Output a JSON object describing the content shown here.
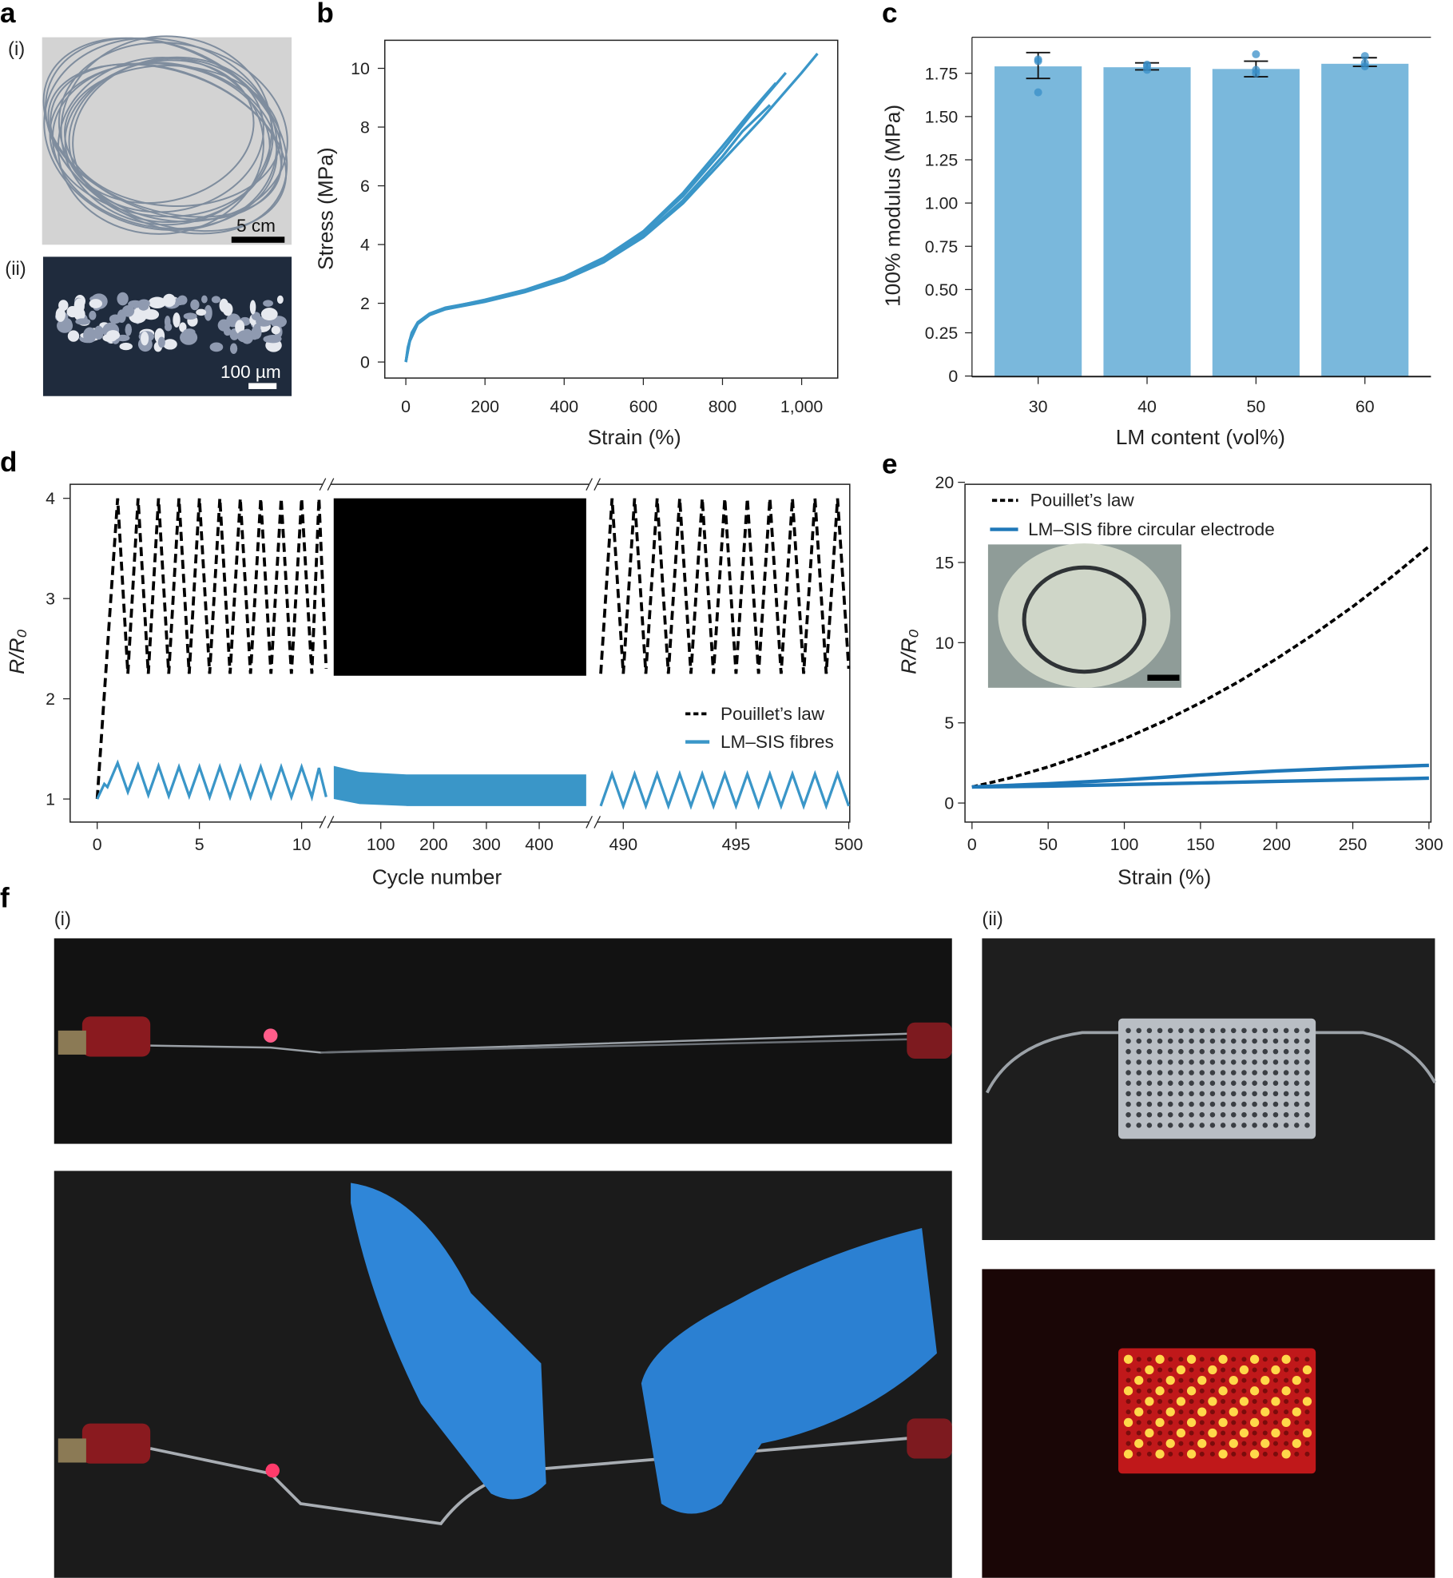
{
  "panel_labels": {
    "a": "a",
    "b": "b",
    "c": "c",
    "d": "d",
    "e": "e",
    "f": "f"
  },
  "sub_labels": {
    "a_i": "(i)",
    "a_ii": "(ii)",
    "f_i": "(i)",
    "f_ii": "(ii)"
  },
  "scale_bars": {
    "a_i": "5 cm",
    "a_ii": "100 µm"
  },
  "chart_data": [
    {
      "panel": "b",
      "type": "line",
      "xlabel": "Strain (%)",
      "ylabel": "Stress (MPa)",
      "xlim": [
        -53,
        1090
      ],
      "ylim": [
        -0.55,
        10.96
      ],
      "xticks": [
        0,
        200,
        400,
        600,
        800,
        1000
      ],
      "xtick_labels": [
        "0",
        "200",
        "400",
        "600",
        "800",
        "1,000"
      ],
      "yticks": [
        0,
        2,
        4,
        6,
        8,
        10
      ],
      "ytick_labels": [
        "0",
        "2",
        "4",
        "6",
        "8",
        "10"
      ],
      "grid": false,
      "color": "#3a96c8",
      "series": [
        {
          "points": [
            [
              0,
              0
            ],
            [
              5,
              0.5
            ],
            [
              15,
              1.0
            ],
            [
              30,
              1.35
            ],
            [
              60,
              1.65
            ],
            [
              100,
              1.85
            ],
            [
              200,
              2.1
            ],
            [
              300,
              2.42
            ],
            [
              400,
              2.85
            ],
            [
              500,
              3.5
            ],
            [
              600,
              4.4
            ],
            [
              700,
              5.65
            ],
            [
              800,
              7.2
            ],
            [
              900,
              8.9
            ],
            [
              960,
              9.85
            ]
          ]
        },
        {
          "points": [
            [
              0,
              0
            ],
            [
              5,
              0.45
            ],
            [
              15,
              0.95
            ],
            [
              30,
              1.3
            ],
            [
              60,
              1.6
            ],
            [
              100,
              1.8
            ],
            [
              200,
              2.05
            ],
            [
              300,
              2.38
            ],
            [
              400,
              2.8
            ],
            [
              500,
              3.4
            ],
            [
              600,
              4.25
            ],
            [
              700,
              5.4
            ],
            [
              800,
              6.85
            ],
            [
              900,
              8.3
            ],
            [
              1000,
              9.85
            ],
            [
              1040,
              10.5
            ]
          ]
        },
        {
          "points": [
            [
              0,
              0
            ],
            [
              10,
              0.7
            ],
            [
              30,
              1.3
            ],
            [
              60,
              1.6
            ],
            [
              100,
              1.8
            ],
            [
              200,
              2.08
            ],
            [
              300,
              2.4
            ],
            [
              400,
              2.82
            ],
            [
              500,
              3.45
            ],
            [
              600,
              4.3
            ],
            [
              700,
              5.5
            ],
            [
              800,
              7.0
            ],
            [
              850,
              7.85
            ],
            [
              920,
              8.75
            ]
          ]
        },
        {
          "points": [
            [
              0,
              0
            ],
            [
              10,
              0.75
            ],
            [
              30,
              1.32
            ],
            [
              60,
              1.62
            ],
            [
              100,
              1.83
            ],
            [
              200,
              2.12
            ],
            [
              300,
              2.45
            ],
            [
              400,
              2.9
            ],
            [
              500,
              3.55
            ],
            [
              600,
              4.45
            ],
            [
              700,
              5.75
            ],
            [
              800,
              7.35
            ],
            [
              870,
              8.5
            ],
            [
              935,
              9.5
            ]
          ]
        }
      ]
    },
    {
      "panel": "c",
      "type": "bar",
      "xlabel": "LM content (vol%)",
      "ylabel": "100% modulus (MPa)",
      "categories": [
        "30",
        "40",
        "50",
        "60"
      ],
      "values": [
        1.79,
        1.785,
        1.775,
        1.805
      ],
      "error_range": [
        [
          1.72,
          1.87
        ],
        [
          1.77,
          1.81
        ],
        [
          1.73,
          1.82
        ],
        [
          1.79,
          1.84
        ]
      ],
      "individual_points": [
        [
          1.64,
          1.82,
          1.83
        ],
        [
          1.77,
          1.79,
          1.8
        ],
        [
          1.75,
          1.77,
          1.86
        ],
        [
          1.79,
          1.81,
          1.85
        ]
      ],
      "ylim": [
        0,
        1.97
      ],
      "yticks": [
        0,
        0.25,
        0.5,
        0.75,
        1.0,
        1.25,
        1.5,
        1.75
      ],
      "ytick_labels": [
        "0",
        "0.25",
        "0.50",
        "0.75",
        "1.00",
        "1.25",
        "1.50",
        "1.75"
      ],
      "grid": false,
      "bar_color": "#7ab8dc",
      "point_color": "#3a8fc8"
    },
    {
      "panel": "d",
      "type": "line",
      "xlabel": "Cycle number",
      "ylabel": "R/R₀",
      "broken_x_axis": true,
      "xtick_labels": [
        "0",
        "5",
        "10",
        "100",
        "200",
        "300",
        "400",
        "490",
        "495",
        "500"
      ],
      "xticks": [
        0,
        5,
        10,
        100,
        200,
        300,
        400,
        490,
        495,
        500
      ],
      "yticks": [
        1,
        2,
        3,
        4
      ],
      "ytick_labels": [
        "1",
        "2",
        "3",
        "4"
      ],
      "legend_position": "lower-right",
      "series": [
        {
          "name": "Pouillet’s law",
          "color": "#000000",
          "style": "dashed",
          "segment1": [
            [
              0,
              1
            ],
            [
              1,
              4
            ],
            [
              1.5,
              2.25
            ],
            [
              2,
              4
            ],
            [
              2.5,
              2.25
            ],
            [
              3,
              4
            ],
            [
              3.5,
              2.25
            ],
            [
              4,
              4
            ],
            [
              4.5,
              2.25
            ],
            [
              5,
              4
            ],
            [
              5.5,
              2.25
            ],
            [
              6,
              4
            ],
            [
              6.5,
              2.25
            ],
            [
              7,
              4
            ],
            [
              7.5,
              2.25
            ],
            [
              8,
              4
            ],
            [
              8.5,
              2.25
            ],
            [
              9,
              4
            ],
            [
              9.5,
              2.25
            ],
            [
              10,
              4
            ],
            [
              10.5,
              2.25
            ],
            [
              10.85,
              4
            ],
            [
              11.2,
              2.3
            ]
          ],
          "segment2_band": {
            "x_range": [
              11,
              489
            ],
            "lower": 2.23,
            "upper": 4
          },
          "segment3": [
            [
              489,
              2.25
            ],
            [
              489.5,
              4
            ],
            [
              490,
              2.25
            ],
            [
              490.5,
              4
            ],
            [
              491,
              2.25
            ],
            [
              491.5,
              4
            ],
            [
              492,
              2.25
            ],
            [
              492.5,
              4
            ],
            [
              493,
              2.25
            ],
            [
              493.5,
              4
            ],
            [
              494,
              2.25
            ],
            [
              494.5,
              4
            ],
            [
              495,
              2.25
            ],
            [
              495.5,
              4
            ],
            [
              496,
              2.25
            ],
            [
              496.5,
              4
            ],
            [
              497,
              2.25
            ],
            [
              497.5,
              4
            ],
            [
              498,
              2.25
            ],
            [
              498.5,
              4
            ],
            [
              499,
              2.25
            ],
            [
              499.5,
              4
            ],
            [
              500,
              2.3
            ]
          ]
        },
        {
          "name": "LM–SIS fibres",
          "color": "#3a96c8",
          "style": "solid",
          "segment1": [
            [
              0,
              1
            ],
            [
              0.35,
              1.15
            ],
            [
              0.5,
              1.12
            ],
            [
              1,
              1.36
            ],
            [
              1.5,
              1.07
            ],
            [
              2,
              1.34
            ],
            [
              2.5,
              1.04
            ],
            [
              3,
              1.33
            ],
            [
              3.5,
              1.03
            ],
            [
              4,
              1.32
            ],
            [
              4.5,
              1.03
            ],
            [
              5,
              1.32
            ],
            [
              5.5,
              1.02
            ],
            [
              6,
              1.32
            ],
            [
              6.5,
              1.02
            ],
            [
              7,
              1.32
            ],
            [
              7.5,
              1.02
            ],
            [
              8,
              1.32
            ],
            [
              8.5,
              1.02
            ],
            [
              9,
              1.32
            ],
            [
              9.5,
              1.02
            ],
            [
              10,
              1.32
            ],
            [
              10.5,
              1.02
            ],
            [
              10.85,
              1.31
            ],
            [
              11.2,
              1.02
            ]
          ],
          "segment2_band": {
            "upper": [
              [
                11,
                1.33
              ],
              [
                60,
                1.27
              ],
              [
                150,
                1.245
              ],
              [
                489,
                1.245
              ]
            ],
            "lower": [
              [
                11,
                1.0
              ],
              [
                60,
                0.95
              ],
              [
                150,
                0.93
              ],
              [
                489,
                0.93
              ]
            ]
          },
          "segment3": [
            [
              489,
              0.93
            ],
            [
              489.5,
              1.25
            ],
            [
              490,
              0.93
            ],
            [
              490.5,
              1.25
            ],
            [
              491,
              0.93
            ],
            [
              491.5,
              1.25
            ],
            [
              492,
              0.93
            ],
            [
              492.5,
              1.25
            ],
            [
              493,
              0.93
            ],
            [
              493.5,
              1.25
            ],
            [
              494,
              0.93
            ],
            [
              494.5,
              1.25
            ],
            [
              495,
              0.93
            ],
            [
              495.5,
              1.25
            ],
            [
              496,
              0.93
            ],
            [
              496.5,
              1.25
            ],
            [
              497,
              0.93
            ],
            [
              497.5,
              1.25
            ],
            [
              498,
              0.93
            ],
            [
              498.5,
              1.25
            ],
            [
              499,
              0.93
            ],
            [
              499.5,
              1.25
            ],
            [
              500,
              0.93
            ]
          ]
        }
      ]
    },
    {
      "panel": "e",
      "type": "line",
      "xlabel": "Strain (%)",
      "ylabel": "R/R₀",
      "xlim": [
        0,
        300
      ],
      "ylim": [
        -1.2,
        20
      ],
      "xticks": [
        0,
        50,
        100,
        150,
        200,
        250,
        300
      ],
      "xtick_labels": [
        "0",
        "50",
        "100",
        "150",
        "200",
        "250",
        "300"
      ],
      "yticks": [
        0,
        5,
        10,
        15,
        20
      ],
      "ytick_labels": [
        "0",
        "5",
        "10",
        "15",
        "20"
      ],
      "legend_position": "top-left",
      "series": [
        {
          "name": "Pouillet’s law",
          "color": "#000000",
          "style": "dashed",
          "points": [
            [
              0,
              1
            ],
            [
              25,
              1.5625
            ],
            [
              50,
              2.25
            ],
            [
              75,
              3.0625
            ],
            [
              100,
              4
            ],
            [
              125,
              5.0625
            ],
            [
              150,
              6.25
            ],
            [
              175,
              7.5625
            ],
            [
              200,
              9
            ],
            [
              225,
              10.5625
            ],
            [
              250,
              12.25
            ],
            [
              275,
              14.0625
            ],
            [
              300,
              16
            ]
          ]
        },
        {
          "name": "LM–SIS fibre circular electrode",
          "color": "#1f78b8",
          "style": "solid",
          "loading": [
            [
              0,
              1
            ],
            [
              50,
              1.05
            ],
            [
              100,
              1.15
            ],
            [
              150,
              1.25
            ],
            [
              200,
              1.35
            ],
            [
              250,
              1.45
            ],
            [
              300,
              1.55
            ]
          ],
          "unloading": [
            [
              0,
              1
            ],
            [
              50,
              1.2
            ],
            [
              100,
              1.45
            ],
            [
              150,
              1.75
            ],
            [
              200,
              2.0
            ],
            [
              250,
              2.2
            ],
            [
              300,
              2.35
            ]
          ]
        }
      ]
    }
  ]
}
